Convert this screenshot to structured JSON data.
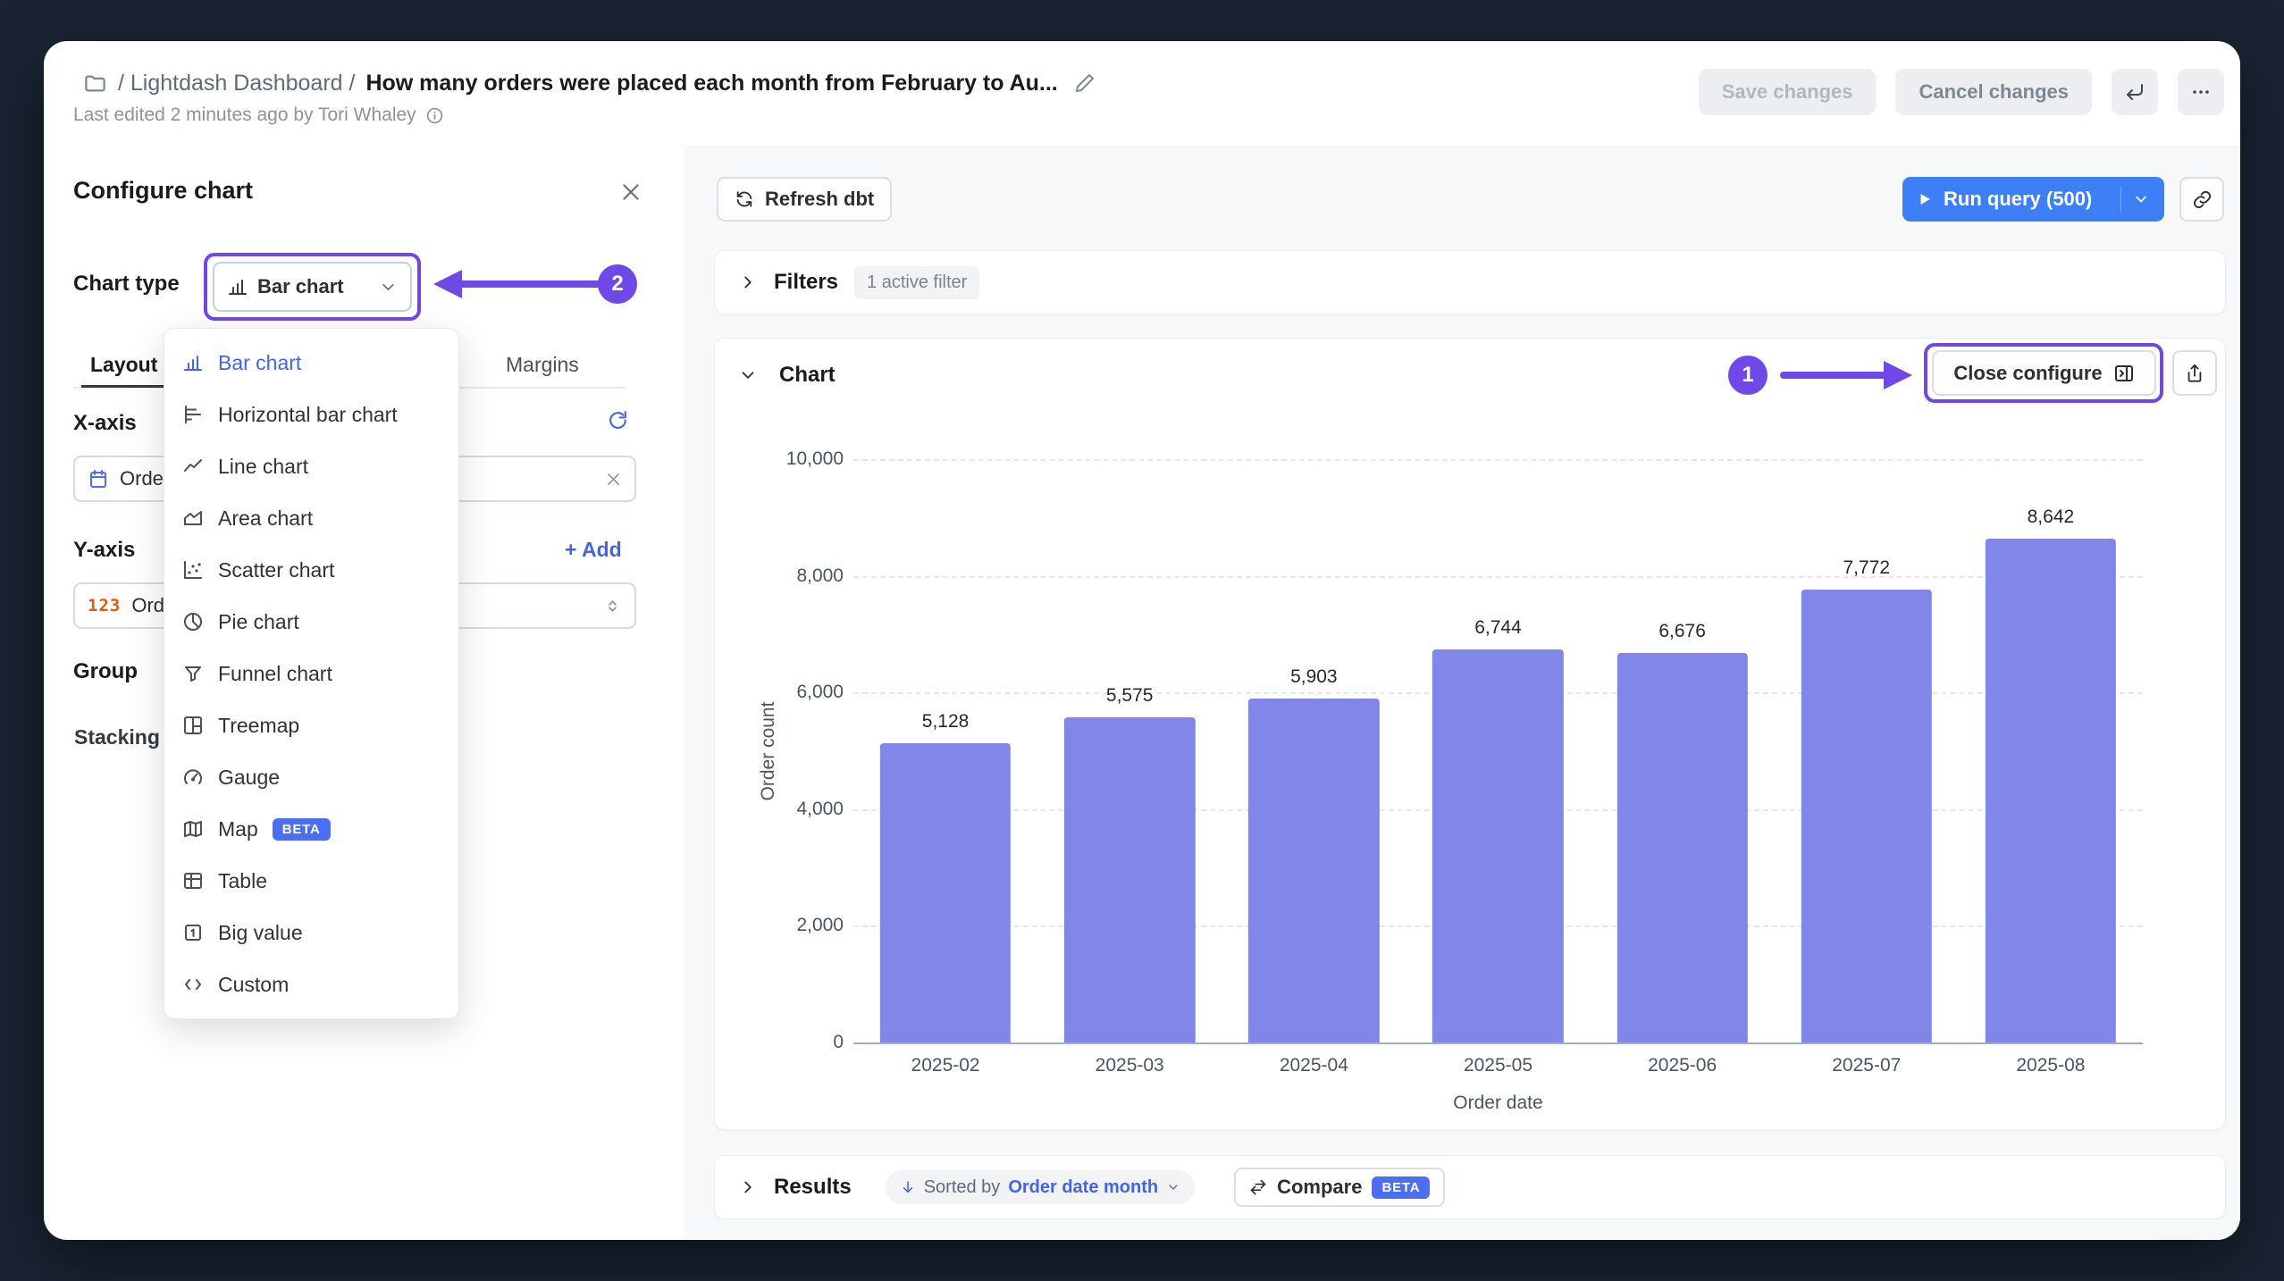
{
  "window": {
    "breadcrumb_prefix": "/ Lightdash Dashboard /",
    "title": "How many orders were placed each month from February to Au...",
    "last_edited": "Last edited 2 minutes ago by Tori Whaley",
    "save_button": "Save changes",
    "cancel_button": "Cancel changes"
  },
  "config_panel": {
    "title": "Configure chart",
    "chart_type_label": "Chart type",
    "chart_type_value": "Bar chart",
    "tabs": [
      {
        "label": "Layout"
      },
      {
        "label": "Margins"
      }
    ],
    "x_axis": {
      "label": "X-axis",
      "field": "Orde"
    },
    "y_axis": {
      "label": "Y-axis",
      "add_label": "+ Add",
      "field": "Orde",
      "icon_text": "123"
    },
    "group_label": "Group",
    "stacking_label": "Stacking"
  },
  "chart_type_menu": {
    "items": [
      {
        "label": "Bar chart"
      },
      {
        "label": "Horizontal bar chart"
      },
      {
        "label": "Line chart"
      },
      {
        "label": "Area chart"
      },
      {
        "label": "Scatter chart"
      },
      {
        "label": "Pie chart"
      },
      {
        "label": "Funnel chart"
      },
      {
        "label": "Treemap"
      },
      {
        "label": "Gauge"
      },
      {
        "label": "Map",
        "badge": "BETA"
      },
      {
        "label": "Table"
      },
      {
        "label": "Big value"
      },
      {
        "label": "Custom"
      }
    ]
  },
  "toolbar": {
    "refresh_dbt": "Refresh dbt",
    "run_query": "Run query (500)"
  },
  "filters_section": {
    "title": "Filters",
    "badge": "1 active filter"
  },
  "chart_section": {
    "title": "Chart",
    "close_configure": "Close configure"
  },
  "results_section": {
    "title": "Results",
    "sorted_prefix": "Sorted by",
    "sorted_field": "Order date month",
    "compare_label": "Compare",
    "compare_badge": "BETA"
  },
  "annotations": {
    "step1": "1",
    "step2": "2",
    "accent_color": "#7048E8"
  },
  "chart_data": {
    "type": "bar",
    "categories": [
      "2025-02",
      "2025-03",
      "2025-04",
      "2025-05",
      "2025-06",
      "2025-07",
      "2025-08"
    ],
    "values": [
      5128,
      5575,
      5903,
      6744,
      6676,
      7772,
      8642
    ],
    "value_labels": [
      "5,128",
      "5,575",
      "5,903",
      "6,744",
      "6,676",
      "7,772",
      "8,642"
    ],
    "title": "",
    "xlabel": "Order date",
    "ylabel": "Order count",
    "ylim": [
      0,
      10000
    ],
    "yticks": [
      0,
      2000,
      4000,
      6000,
      8000,
      10000
    ],
    "ytick_labels": [
      "0",
      "2,000",
      "4,000",
      "6,000",
      "8,000",
      "10,000"
    ],
    "grid": "horizontal-dashed",
    "legend": "none",
    "bar_color": "#8186E8"
  }
}
